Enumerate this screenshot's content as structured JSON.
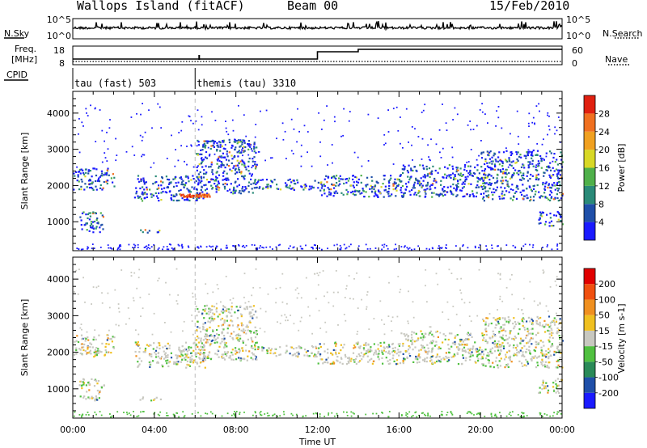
{
  "header": {
    "title": "Wallops Island (fitACF)",
    "beam": "Beam 00",
    "date": "15/Feb/2010"
  },
  "top_panels": {
    "nsky_label": "N.Sky",
    "nsky_ticks": [
      "10^5",
      "10^0"
    ],
    "nsearch_label": "N.Search",
    "nsearch_ticks": [
      "10^5",
      "10^0"
    ],
    "freq_label_1": "Freq.",
    "freq_label_2": "[MHz]",
    "freq_ticks": [
      "18",
      "8"
    ],
    "nave_label": "Nave",
    "nave_ticks": [
      "60",
      "0"
    ],
    "cpid_label": "CPID",
    "cpid_modes": [
      {
        "label": "tau (fast) 503",
        "start_ut": 0.0
      },
      {
        "label": "themis (tau) 3310",
        "start_ut": 6.0
      }
    ],
    "freq_steps": [
      {
        "ut_start": 0.0,
        "ut_end": 12.0,
        "level": "low"
      },
      {
        "ut_start": 12.0,
        "ut_end": 14.0,
        "level": "mid"
      },
      {
        "ut_start": 14.0,
        "ut_end": 24.0,
        "level": "high"
      }
    ]
  },
  "chart_data": [
    {
      "type": "heatmap",
      "name": "power",
      "ylabel": "Slant Range [km]",
      "xlabel": "",
      "x_ticks": [
        "00:00",
        "04:00",
        "08:00",
        "12:00",
        "16:00",
        "20:00",
        "00:00"
      ],
      "y_ticks": [
        1000,
        2000,
        3000,
        4000
      ],
      "xlim": [
        0,
        24
      ],
      "ylim": [
        200,
        4600
      ],
      "colorbar_label": "Power [dB]",
      "colorbar_ticks": [
        "4",
        "8",
        "12",
        "16",
        "20",
        "24",
        "28"
      ],
      "colorbar_colors": [
        "#1a1aff",
        "#1f4fa8",
        "#2a8a78",
        "#4fb04a",
        "#d8d826",
        "#f0a020",
        "#f07020",
        "#e02010"
      ],
      "echo_bands": [
        {
          "ut": [
            0.0,
            2.0
          ],
          "range": [
            1900,
            2500
          ]
        },
        {
          "ut": [
            3.0,
            6.5
          ],
          "range": [
            1600,
            2300
          ]
        },
        {
          "ut": [
            6.0,
            9.0
          ],
          "range": [
            1800,
            3300
          ]
        },
        {
          "ut": [
            9.0,
            12.0
          ],
          "range": [
            1900,
            2200
          ]
        },
        {
          "ut": [
            12.0,
            16.0
          ],
          "range": [
            1700,
            2300
          ]
        },
        {
          "ut": [
            16.0,
            20.0
          ],
          "range": [
            1700,
            2600
          ]
        },
        {
          "ut": [
            20.0,
            24.0
          ],
          "range": [
            1600,
            3000
          ]
        },
        {
          "ut": [
            0.3,
            1.5
          ],
          "range": [
            700,
            1300
          ]
        },
        {
          "ut": [
            3.2,
            4.3
          ],
          "range": [
            700,
            800
          ]
        },
        {
          "ut": [
            22.8,
            24.0
          ],
          "range": [
            900,
            1300
          ]
        }
      ]
    },
    {
      "type": "heatmap",
      "name": "velocity",
      "ylabel": "Slant Range [km]",
      "xlabel": "Time UT",
      "x_ticks": [
        "00:00",
        "04:00",
        "08:00",
        "12:00",
        "16:00",
        "20:00",
        "00:00"
      ],
      "y_ticks": [
        1000,
        2000,
        3000,
        4000
      ],
      "xlim": [
        0,
        24
      ],
      "ylim": [
        200,
        4600
      ],
      "colorbar_label": "Velocity [m s-1]",
      "colorbar_ticks": [
        "200",
        "100",
        "50",
        "15",
        "-15",
        "-50",
        "-100",
        "-200"
      ],
      "colorbar_colors": [
        "#1a1aff",
        "#1f4fa8",
        "#2a8a58",
        "#50c040",
        "#c8c8c0",
        "#f0c020",
        "#f09020",
        "#f05010",
        "#e00000"
      ]
    }
  ]
}
